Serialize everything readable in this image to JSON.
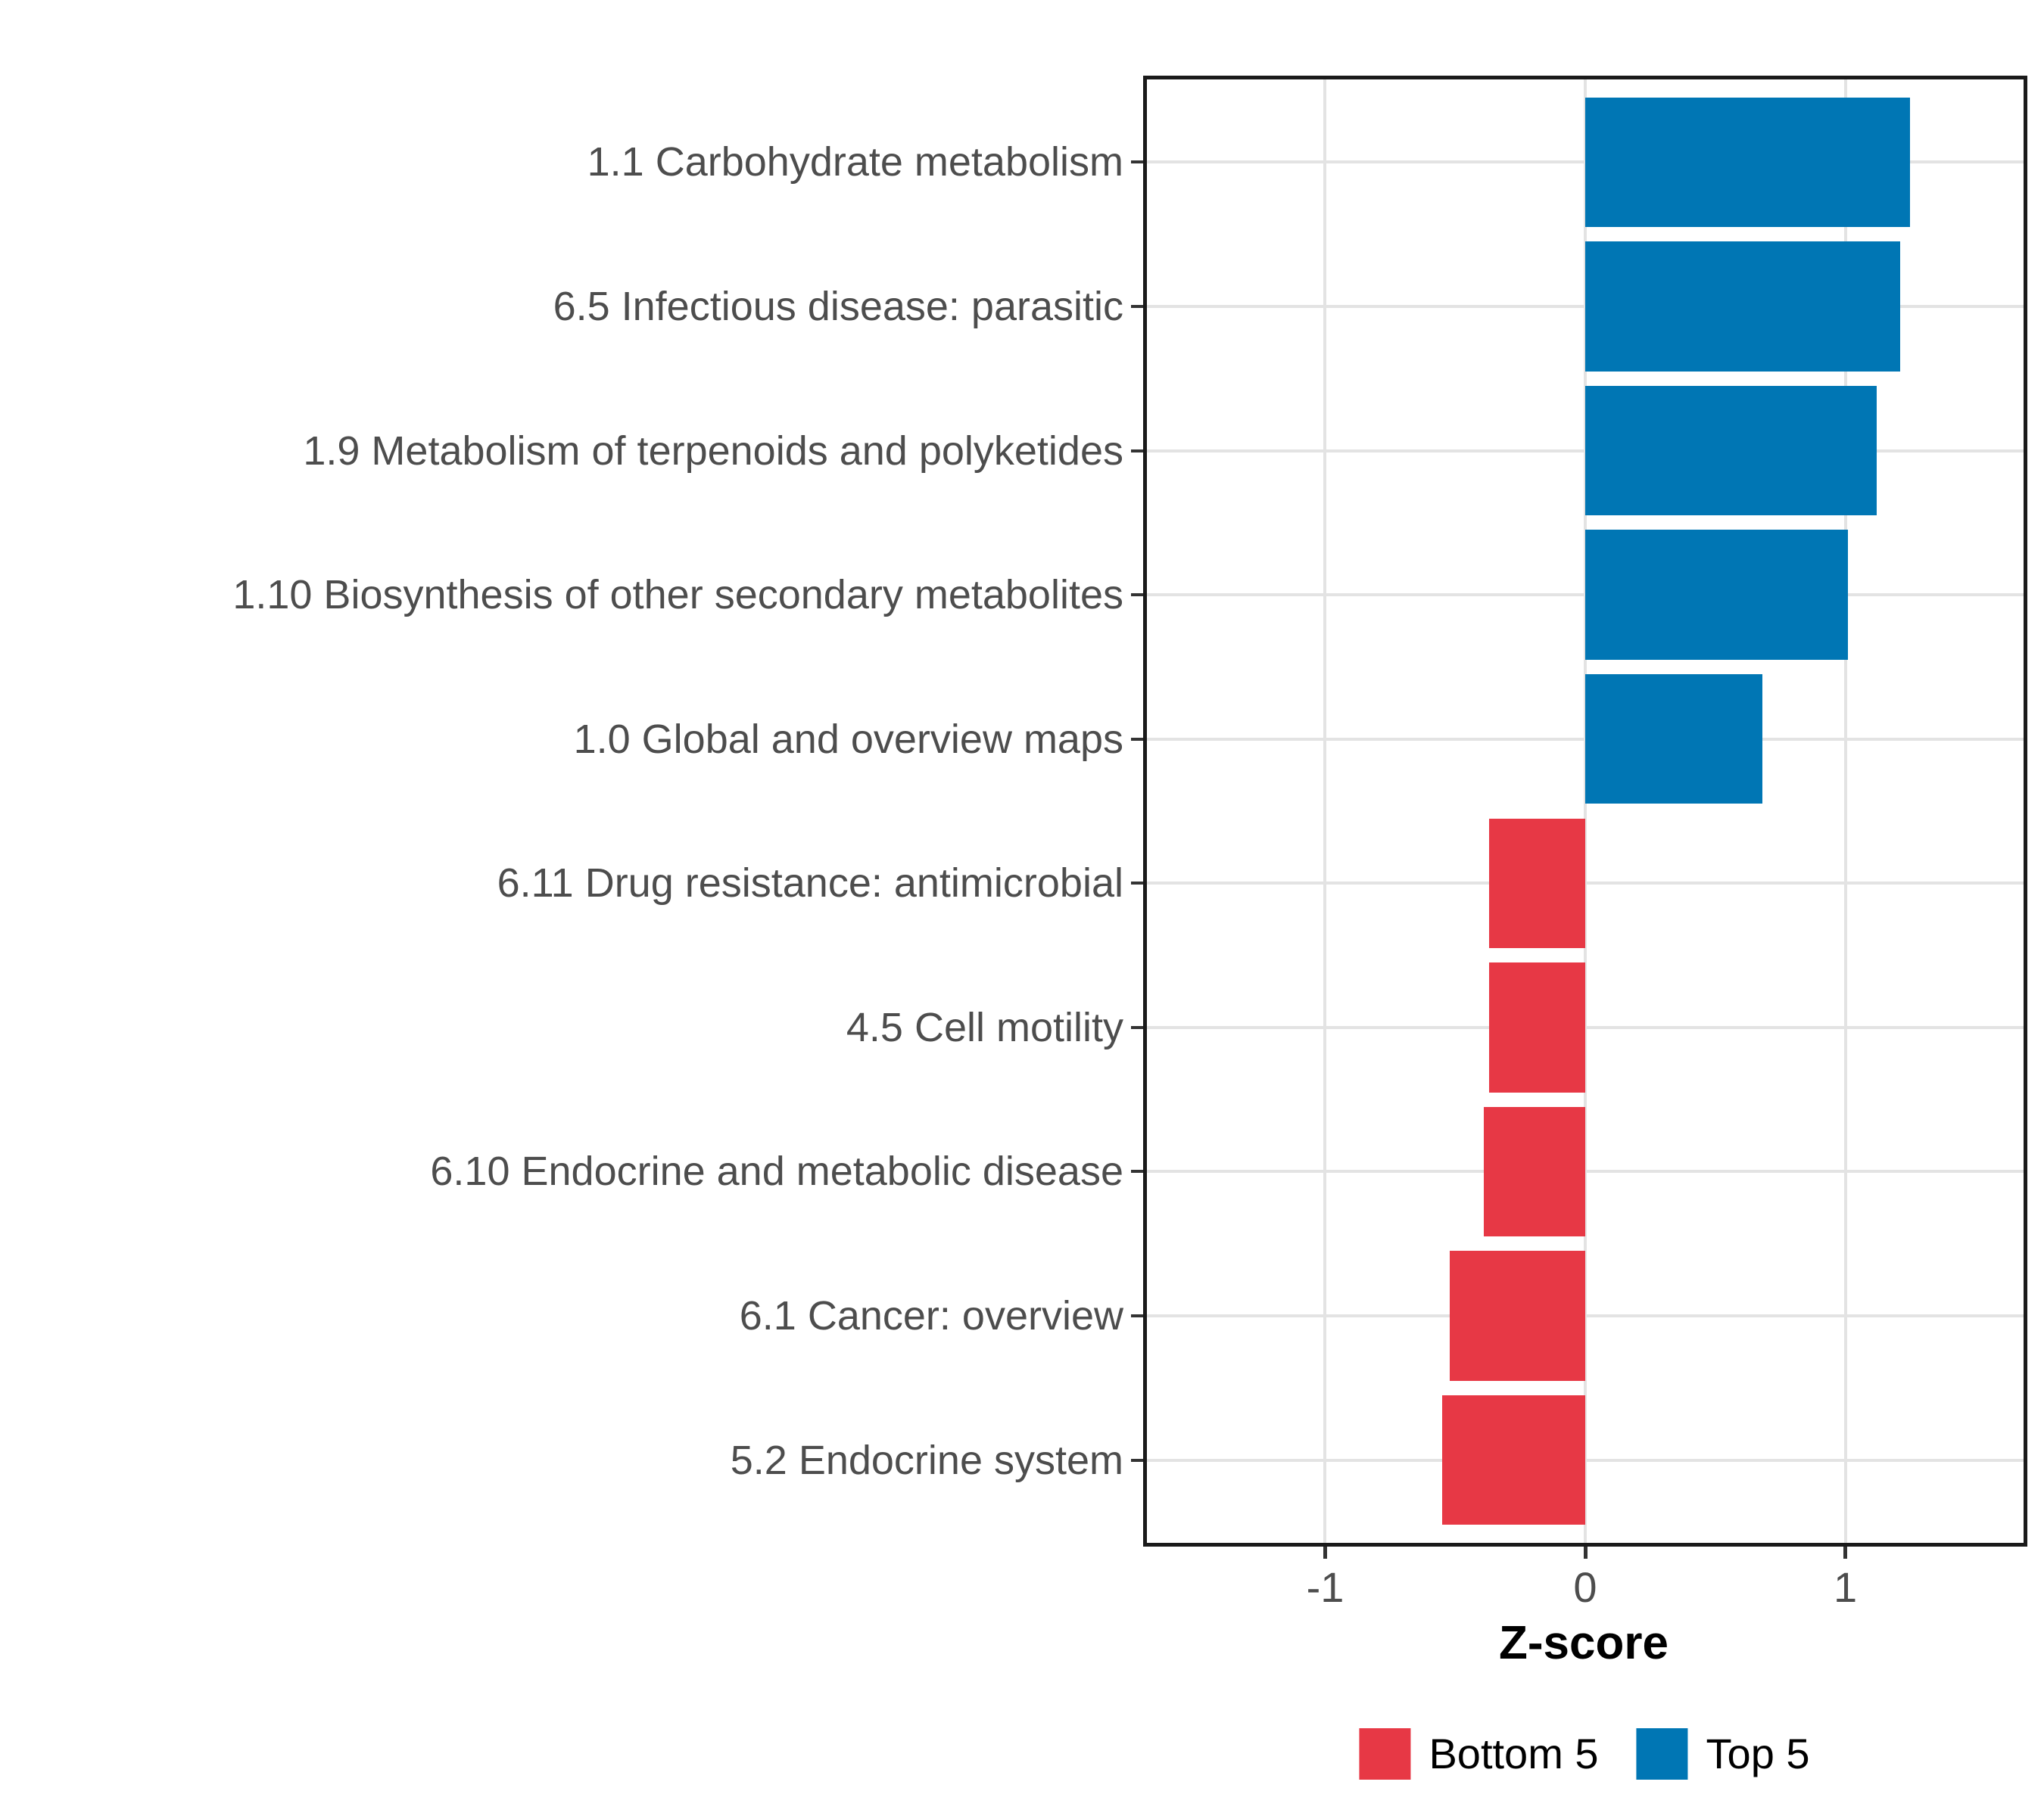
{
  "chart_data": {
    "type": "bar",
    "orientation": "horizontal",
    "title": "",
    "xlabel": "Z-score",
    "ylabel": "",
    "xlim": [
      -1.7,
      1.7
    ],
    "x_ticks": [
      {
        "value": -1,
        "label": "-1"
      },
      {
        "value": 0,
        "label": "0"
      },
      {
        "value": 1,
        "label": "1"
      }
    ],
    "grid": "major-only",
    "panel_background": "#ffffff",
    "gridline_color": "#E3E3E3",
    "categories": [
      "1.1 Carbohydrate metabolism",
      "6.5 Infectious disease: parasitic",
      "1.9 Metabolism of terpenoids and polyketides",
      "1.10 Biosynthesis of other secondary metabolites",
      "1.0 Global and overview maps",
      "6.11 Drug resistance: antimicrobial",
      "4.5 Cell motility",
      "6.10 Endocrine and metabolic disease",
      "6.1 Cancer: overview",
      "5.2 Endocrine system"
    ],
    "values": [
      1.25,
      1.21,
      1.12,
      1.01,
      0.68,
      -0.37,
      -0.37,
      -0.39,
      -0.52,
      -0.55
    ],
    "groups": [
      "Top 5",
      "Top 5",
      "Top 5",
      "Top 5",
      "Top 5",
      "Bottom 5",
      "Bottom 5",
      "Bottom 5",
      "Bottom 5",
      "Bottom 5"
    ],
    "colors": {
      "Top 5": "#0076B4",
      "Bottom 5": "#E73845"
    },
    "legend": {
      "position": "bottom",
      "entries": [
        {
          "label": "Bottom 5",
          "color": "#E73845"
        },
        {
          "label": "Top 5",
          "color": "#0076B4"
        }
      ]
    }
  }
}
